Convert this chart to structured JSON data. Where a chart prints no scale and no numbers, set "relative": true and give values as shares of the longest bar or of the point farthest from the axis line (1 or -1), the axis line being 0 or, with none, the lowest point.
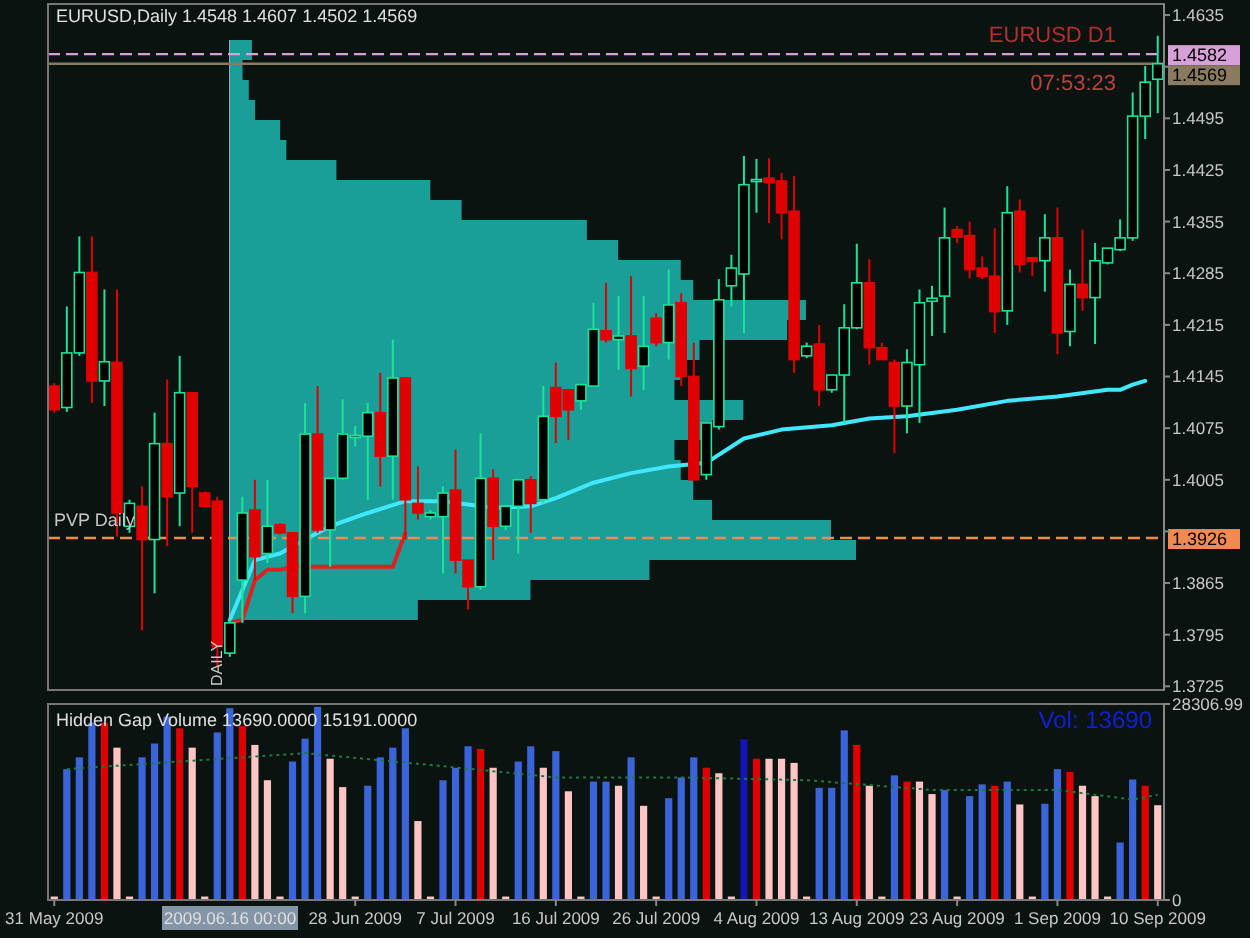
{
  "chart_data": [
    {
      "type": "candlestick",
      "title": "EURUSD,Daily 1.4548 1.4607 1.4502 1.4569",
      "tick_labels": "y",
      "categories": [
        null,
        null,
        null,
        null,
        null,
        null,
        null,
        null,
        null,
        null,
        null,
        null,
        null,
        null,
        null,
        null,
        null,
        null,
        null,
        null,
        null,
        null,
        null,
        null,
        null,
        null,
        null,
        null,
        null,
        null,
        null,
        null,
        null,
        null,
        null,
        null,
        null,
        null,
        null,
        null,
        null,
        null,
        null,
        null,
        null,
        null,
        null,
        null,
        null,
        null,
        null,
        null,
        null,
        null,
        null,
        null,
        null,
        null,
        null,
        null,
        null,
        null,
        null,
        null,
        null,
        null,
        null,
        null,
        null,
        null,
        null,
        null,
        null,
        null,
        null,
        null,
        null,
        null,
        null,
        null,
        null,
        null,
        null,
        null,
        null,
        null,
        null,
        null,
        null
      ],
      "ylim": [
        1.372,
        1.465
      ],
      "yticks": [
        1.3725,
        1.3795,
        1.3865,
        {
          "value": 1.3935,
          "label": null
        },
        1.4005,
        1.4075,
        1.4145,
        1.4215,
        1.4285,
        1.4355,
        1.4425,
        1.4495,
        {
          "value": 1.4565,
          "label": null
        },
        1.4635
      ],
      "ohlc": [
        [
          1.4132,
          1.4136,
          1.4096,
          1.41
        ],
        [
          1.4103,
          1.424,
          1.4097,
          1.4177
        ],
        [
          1.4177,
          1.4335,
          1.4173,
          1.4286
        ],
        [
          1.4286,
          1.4335,
          1.4109,
          1.4139
        ],
        [
          1.4139,
          1.4263,
          1.4105,
          1.4165
        ],
        [
          1.4164,
          1.4263,
          1.3928,
          1.396
        ],
        [
          1.3942,
          1.3978,
          1.3933,
          1.3973
        ],
        [
          1.3969,
          1.3996,
          1.3801,
          1.3924
        ],
        [
          1.3924,
          1.4096,
          1.3851,
          1.4054
        ],
        [
          1.4054,
          1.4141,
          1.3915,
          1.3982
        ],
        [
          1.3987,
          1.4173,
          1.3942,
          1.4123
        ],
        [
          1.4123,
          1.4123,
          1.3933,
          1.3996
        ],
        [
          1.3987,
          1.3989,
          1.3967,
          1.3969
        ],
        [
          1.3976,
          1.3982,
          1.3752,
          1.3779
        ],
        [
          1.377,
          1.3815,
          1.3765,
          1.3811
        ],
        [
          1.3869,
          1.3982,
          1.3811,
          1.396
        ],
        [
          1.3964,
          1.4005,
          1.3869,
          1.3901
        ],
        [
          1.3905,
          1.4005,
          1.3892,
          1.3942
        ],
        [
          1.3944,
          1.3946,
          1.3931,
          1.3933
        ],
        [
          1.3933,
          1.3933,
          1.3824,
          1.3847
        ],
        [
          1.3847,
          1.4109,
          1.3824,
          1.4067
        ],
        [
          1.4067,
          1.4132,
          1.3933,
          1.3937
        ],
        [
          1.3937,
          1.4007,
          1.3887,
          1.4007
        ],
        [
          1.4007,
          1.4114,
          1.4005,
          1.4067
        ],
        [
          1.4063,
          1.4078,
          1.405,
          1.4065
        ],
        [
          1.4064,
          1.4109,
          1.3978,
          1.4096
        ],
        [
          1.4096,
          1.415,
          1.3996,
          1.4037
        ],
        [
          1.4037,
          1.4195,
          1.3978,
          1.4143
        ],
        [
          1.4143,
          1.4143,
          1.3924,
          1.3978
        ],
        [
          1.3973,
          1.4023,
          1.3951,
          1.396
        ],
        [
          1.3955,
          1.3964,
          1.3951,
          1.396
        ],
        [
          1.3955,
          1.3996,
          1.3878,
          1.3987
        ],
        [
          1.3991,
          1.4046,
          1.3878,
          1.3896
        ],
        [
          1.3896,
          1.3896,
          1.3829,
          1.386
        ],
        [
          1.386,
          1.4068,
          1.3856,
          1.4007
        ],
        [
          1.4007,
          1.4019,
          1.3896,
          1.3942
        ],
        [
          1.3942,
          1.3969,
          1.3937,
          1.3969
        ],
        [
          1.3969,
          1.4005,
          1.3905,
          1.4005
        ],
        [
          1.4005,
          1.401,
          1.3933,
          1.3973
        ],
        [
          1.3978,
          1.4132,
          1.3973,
          1.4091
        ],
        [
          1.413,
          1.4164,
          1.4055,
          1.4091
        ],
        [
          1.4127,
          1.4127,
          1.4059,
          1.41
        ],
        [
          1.4112,
          1.4134,
          1.41,
          1.4134
        ],
        [
          1.4132,
          1.4245,
          1.4132,
          1.4209
        ],
        [
          1.4207,
          1.4272,
          1.4191,
          1.4195
        ],
        [
          1.4195,
          1.4254,
          1.4154,
          1.42
        ],
        [
          1.42,
          1.4281,
          1.4118,
          1.4156
        ],
        [
          1.4159,
          1.4254,
          1.4127,
          1.4186
        ],
        [
          1.4224,
          1.4231,
          1.4186,
          1.4191
        ],
        [
          1.4191,
          1.429,
          1.4168,
          1.4242
        ],
        [
          1.4245,
          1.4258,
          1.4132,
          1.4145
        ],
        [
          1.4145,
          1.4191,
          1.4005,
          1.4005
        ],
        [
          1.4012,
          1.4082,
          1.4005,
          1.4082
        ],
        [
          1.4077,
          1.4277,
          1.4073,
          1.4249
        ],
        [
          1.4268,
          1.431,
          1.424,
          1.4292
        ],
        [
          1.4284,
          1.4444,
          1.4204,
          1.4405
        ],
        [
          1.4411,
          1.444,
          1.4367,
          1.4412
        ],
        [
          1.4414,
          1.4441,
          1.4353,
          1.4408
        ],
        [
          1.441,
          1.4421,
          1.4331,
          1.4367
        ],
        [
          1.4369,
          1.4417,
          1.415,
          1.4168
        ],
        [
          1.4173,
          1.4191,
          1.417,
          1.4186
        ],
        [
          1.4189,
          1.4215,
          1.4105,
          1.4127
        ],
        [
          1.4127,
          1.4147,
          1.4123,
          1.4147
        ],
        [
          1.4147,
          1.4243,
          1.4081,
          1.4211
        ],
        [
          1.4211,
          1.4325,
          1.4209,
          1.4272
        ],
        [
          1.4272,
          1.4304,
          1.4161,
          1.4184
        ],
        [
          1.4184,
          1.4191,
          1.4168,
          1.4168
        ],
        [
          1.4164,
          1.4168,
          1.4041,
          1.4105
        ],
        [
          1.4105,
          1.4182,
          1.4068,
          1.4164
        ],
        [
          1.4161,
          1.4263,
          1.4082,
          1.4245
        ],
        [
          1.4247,
          1.4268,
          1.42,
          1.4251
        ],
        [
          1.4254,
          1.4374,
          1.4204,
          1.4333
        ],
        [
          1.4344,
          1.4349,
          1.4326,
          1.4334
        ],
        [
          1.4336,
          1.4355,
          1.4278,
          1.429
        ],
        [
          1.4292,
          1.4308,
          1.4277,
          1.4281
        ],
        [
          1.4281,
          1.4346,
          1.4204,
          1.4233
        ],
        [
          1.4234,
          1.4403,
          1.4215,
          1.4367
        ],
        [
          1.4369,
          1.4385,
          1.4286,
          1.4297
        ],
        [
          1.4306,
          1.4306,
          1.4281,
          1.4301
        ],
        [
          1.4302,
          1.4365,
          1.426,
          1.4333
        ],
        [
          1.4333,
          1.4374,
          1.4175,
          1.4204
        ],
        [
          1.4206,
          1.429,
          1.4186,
          1.427
        ],
        [
          1.427,
          1.4344,
          1.4234,
          1.4252
        ],
        [
          1.4252,
          1.4326,
          1.4189,
          1.4302
        ],
        [
          1.4299,
          1.4319,
          1.4297,
          1.4319
        ],
        [
          1.4317,
          1.4358,
          1.4315,
          1.4333
        ],
        [
          1.4333,
          1.453,
          1.4329,
          1.4498
        ],
        [
          1.4498,
          1.4566,
          1.4467,
          1.4544
        ],
        [
          1.4548,
          1.4607,
          1.4502,
          1.4569
        ]
      ],
      "series": [
        {
          "type": "line",
          "color": "#40e8ff",
          "values": [
            null,
            null,
            null,
            null,
            null,
            null,
            null,
            null,
            null,
            null,
            null,
            null,
            null,
            null,
            1.3815,
            null,
            1.3896,
            null,
            1.3905,
            null,
            1.3924,
            null,
            1.3942,
            null,
            null,
            1.396,
            null,
            null,
            1.3976,
            null,
            null,
            1.3976,
            null,
            null,
            null,
            1.3967,
            null,
            null,
            1.3969,
            null,
            1.398,
            null,
            null,
            1.4001,
            null,
            null,
            1.4014,
            null,
            null,
            1.4023,
            null,
            null,
            1.4028,
            null,
            null,
            1.4061,
            null,
            null,
            1.4073,
            null,
            null,
            null,
            1.4079,
            null,
            null,
            1.4088,
            null,
            null,
            1.4091,
            null,
            null,
            null,
            1.41,
            null,
            null,
            null,
            1.4112,
            null,
            null,
            null,
            1.4118,
            null,
            null,
            null,
            1.4127,
            1.4127,
            1.4134,
            1.4139,
            null
          ]
        },
        {
          "type": "line",
          "color": "#e02020",
          "values": [
            null,
            null,
            null,
            null,
            null,
            null,
            null,
            null,
            null,
            null,
            null,
            null,
            null,
            null,
            1.3811,
            1.3815,
            1.3869,
            1.3883,
            1.3883,
            1.3887,
            1.3887,
            1.3887,
            1.3887,
            1.3887,
            1.3887,
            1.3887,
            1.3887,
            1.3887,
            1.3933,
            null,
            null,
            null,
            null,
            null,
            null,
            null,
            null,
            null,
            null,
            null,
            null,
            null,
            null,
            null,
            null,
            null,
            null,
            null,
            null,
            null,
            null,
            null,
            null,
            null,
            null,
            null,
            null,
            null,
            null,
            null,
            null,
            null,
            null,
            null,
            null,
            null,
            null,
            null,
            null,
            null,
            null,
            null,
            null,
            null,
            null,
            null,
            null,
            null,
            null,
            null,
            null,
            null,
            null,
            null,
            null,
            null,
            null,
            null,
            null
          ]
        }
      ],
      "ref_lines": [
        {
          "axis": "y",
          "value": 1.4582,
          "label": "1.4582",
          "color": "#d8a0d8",
          "line_style": "dashed"
        },
        {
          "axis": "y",
          "value": 1.4569,
          "label": "1.4569",
          "color": "#8a7a60",
          "line_style": "solid"
        },
        {
          "axis": "y",
          "value": 1.3926,
          "label": "1.3926",
          "color": "#f08a50",
          "line_style": "dashed"
        }
      ],
      "annotations": [
        "EURUSD  D1",
        "07:53:23",
        {
          "text": "PVP Daily",
          "y": 1.3926
        },
        "DAILY"
      ]
    },
    {
      "type": "bar",
      "orientation": "horizontal",
      "relative": true,
      "color": "#1a9e98",
      "categories": [
        null,
        null,
        null,
        null,
        null,
        null,
        null,
        null,
        null,
        null,
        null,
        null,
        null,
        null,
        null,
        null,
        null,
        null,
        null,
        null,
        null,
        null,
        null,
        null,
        null,
        null,
        null,
        null,
        null
      ],
      "values": [
        0.035,
        0.02,
        0.03,
        0.04,
        0.08,
        0.09,
        0.17,
        0.32,
        0.37,
        0.57,
        0.62,
        0.72,
        0.74,
        0.92,
        0.89,
        0.75,
        0.72,
        0.71,
        0.82,
        0.77,
        0.71,
        0.72,
        0.74,
        0.77,
        0.96,
        1,
        0.67,
        0.48,
        0.3
      ]
    },
    {
      "type": "bar",
      "title": "Hidden Gap Volume 13690.0000 15191.0000",
      "categories": [
        "31 May 2009",
        null,
        null,
        null,
        null,
        null,
        null,
        null,
        null,
        null,
        null,
        null,
        null,
        null,
        null,
        null,
        null,
        null,
        null,
        null,
        null,
        null,
        null,
        null,
        "28 Jun 2009",
        null,
        null,
        null,
        null,
        null,
        null,
        null,
        "7 Jul 2009",
        null,
        null,
        null,
        null,
        null,
        null,
        null,
        "16 Jul 2009",
        null,
        null,
        null,
        null,
        null,
        null,
        null,
        "26 Jul 2009",
        null,
        null,
        null,
        null,
        null,
        null,
        null,
        "4 Aug 2009",
        null,
        null,
        null,
        null,
        null,
        null,
        null,
        "13 Aug 2009",
        null,
        null,
        null,
        null,
        null,
        null,
        null,
        "23 Aug 2009",
        null,
        null,
        null,
        null,
        null,
        null,
        null,
        "1 Sep 2009",
        null,
        null,
        null,
        null,
        null,
        null,
        null,
        "10 Sep 2009"
      ],
      "ylim": [
        0,
        28306.99
      ],
      "yticks": [
        0,
        28306.99
      ],
      "series": [
        {
          "type": "bar",
          "values": [
            500,
            18900,
            20600,
            25600,
            25600,
            22000,
            500,
            20600,
            22600,
            26500,
            24800,
            22000,
            500,
            24200,
            27700,
            25100,
            22400,
            17300,
            500,
            20000,
            23300,
            27900,
            20400,
            16300,
            500,
            16500,
            20600,
            22000,
            24800,
            11400,
            500,
            17300,
            19100,
            22200,
            21800,
            19100,
            500,
            20000,
            22200,
            19100,
            21500,
            15700,
            500,
            17100,
            17100,
            16500,
            20600,
            13600,
            500,
            14700,
            17700,
            20600,
            19100,
            18300,
            500,
            23200,
            20400,
            20400,
            20400,
            19800,
            500,
            16200,
            16200,
            24500,
            22400,
            16500,
            500,
            18000,
            17100,
            17100,
            15300,
            15900,
            500,
            15000,
            16700,
            16500,
            17100,
            13800,
            500,
            13900,
            18900,
            18500,
            16500,
            15000,
            500,
            8300,
            17400,
            16500,
            13690
          ],
          "colors": [
            "#ffc4c4",
            "#3b64d8",
            "#3b64d8",
            "#3b64d8",
            "#e00000",
            "#ffc4c4",
            "#ffc4c4",
            "#3b64d8",
            "#3b64d8",
            "#3b64d8",
            "#e00000",
            "#ffc4c4",
            "#ffc4c4",
            "#3b64d8",
            "#3b64d8",
            "#e00000",
            "#ffc4c4",
            "#ffc4c4",
            "#ffc4c4",
            "#3b64d8",
            "#3b64d8",
            "#3b64d8",
            "#ffc4c4",
            "#ffc4c4",
            "#ffc4c4",
            "#3b64d8",
            "#3b64d8",
            "#3b64d8",
            "#3b64d8",
            "#ffc4c4",
            "#ffc4c4",
            "#3b64d8",
            "#3b64d8",
            "#3b64d8",
            "#e00000",
            "#ffc4c4",
            "#ffc4c4",
            "#3b64d8",
            "#3b64d8",
            "#ffc4c4",
            "#3b64d8",
            "#ffc4c4",
            "#ffc4c4",
            "#3b64d8",
            "#3b64d8",
            "#ffc4c4",
            "#3b64d8",
            "#ffc4c4",
            "#ffc4c4",
            "#3b64d8",
            "#3b64d8",
            "#3b64d8",
            "#e00000",
            "#ffc4c4",
            "#ffc4c4",
            "#1414b4",
            "#e00000",
            "#ffc4c4",
            "#ffc4c4",
            "#ffc4c4",
            "#ffc4c4",
            "#3b64d8",
            "#3b64d8",
            "#3b64d8",
            "#e00000",
            "#ffc4c4",
            "#ffc4c4",
            "#3b64d8",
            "#e00000",
            "#ffc4c4",
            "#ffc4c4",
            "#3b64d8",
            "#ffc4c4",
            "#3b64d8",
            "#3b64d8",
            "#e00000",
            "#3b64d8",
            "#ffc4c4",
            "#ffc4c4",
            "#3b64d8",
            "#3b64d8",
            "#e00000",
            "#ffc4c4",
            "#ffc4c4",
            "#ffc4c4",
            "#3b64d8",
            "#3b64d8",
            "#e00000",
            "#ffc4c4"
          ]
        },
        {
          "type": "line",
          "color": "#1a7a45",
          "line_style": "dotted",
          "values": [
            null,
            18900,
            null,
            null,
            null,
            null,
            null,
            null,
            null,
            null,
            20000,
            null,
            null,
            null,
            null,
            null,
            null,
            null,
            null,
            null,
            21200,
            null,
            null,
            null,
            null,
            null,
            null,
            null,
            null,
            null,
            19500,
            null,
            null,
            null,
            null,
            null,
            null,
            null,
            null,
            null,
            17700,
            null,
            null,
            null,
            null,
            null,
            null,
            null,
            null,
            null,
            17700,
            null,
            null,
            null,
            null,
            null,
            null,
            null,
            null,
            null,
            17300,
            null,
            null,
            null,
            null,
            null,
            null,
            null,
            null,
            null,
            15900,
            null,
            null,
            null,
            null,
            null,
            null,
            null,
            null,
            null,
            15900,
            null,
            null,
            null,
            null,
            null,
            14500,
            null,
            15191
          ]
        }
      ],
      "annotations": [
        "Vol: 13690",
        "2009.06.16 00:00"
      ]
    }
  ]
}
